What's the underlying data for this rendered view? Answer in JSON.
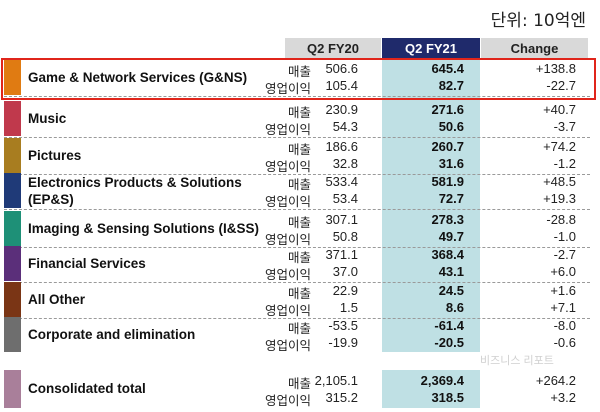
{
  "unit_label": "단위: 10억엔",
  "headers": {
    "prev": "Q2 FY20",
    "curr": "Q2 FY21",
    "change": "Change"
  },
  "row_labels": {
    "sales": "매출",
    "op_income": "영업이익"
  },
  "segments": [
    {
      "name": "Game & Network Services (G&NS)",
      "color": "#e07b12",
      "sales": {
        "prev": "506.6",
        "curr": "645.4",
        "change": "+138.8"
      },
      "op": {
        "prev": "105.4",
        "curr": "82.7",
        "change": "-22.7"
      }
    },
    {
      "name": "Music",
      "color": "#c0394c",
      "sales": {
        "prev": "230.9",
        "curr": "271.6",
        "change": "+40.7"
      },
      "op": {
        "prev": "54.3",
        "curr": "50.6",
        "change": "-3.7"
      }
    },
    {
      "name": "Pictures",
      "color": "#a87d20",
      "sales": {
        "prev": "186.6",
        "curr": "260.7",
        "change": "+74.2"
      },
      "op": {
        "prev": "32.8",
        "curr": "31.6",
        "change": "-1.2"
      }
    },
    {
      "name": "Electronics Products & Solutions (EP&S)",
      "name_line1": "Electronics Products & Solutions",
      "name_line2": "(EP&S)",
      "color": "#1f3a78",
      "sales": {
        "prev": "533.4",
        "curr": "581.9",
        "change": "+48.5"
      },
      "op": {
        "prev": "53.4",
        "curr": "72.7",
        "change": "+19.3"
      }
    },
    {
      "name": "Imaging & Sensing Solutions (I&SS)",
      "color": "#1e9077",
      "sales": {
        "prev": "307.1",
        "curr": "278.3",
        "change": "-28.8"
      },
      "op": {
        "prev": "50.8",
        "curr": "49.7",
        "change": "-1.0"
      }
    },
    {
      "name": "Financial Services",
      "color": "#5b2f7a",
      "sales": {
        "prev": "371.1",
        "curr": "368.4",
        "change": "-2.7"
      },
      "op": {
        "prev": "37.0",
        "curr": "43.1",
        "change": "+6.0"
      }
    },
    {
      "name": "All Other",
      "color": "#7a3515",
      "sales": {
        "prev": "22.9",
        "curr": "24.5",
        "change": "+1.6"
      },
      "op": {
        "prev": "1.5",
        "curr": "8.6",
        "change": "+7.1"
      }
    },
    {
      "name": "Corporate and elimination",
      "color": "#6e6e6e",
      "sales": {
        "prev": "-53.5",
        "curr": "-61.4",
        "change": "-8.0"
      },
      "op": {
        "prev": "-19.9",
        "curr": "-20.5",
        "change": "-0.6"
      }
    }
  ],
  "total": {
    "name": "Consolidated total",
    "color": "#a97f9a",
    "sales": {
      "prev": "2,105.1",
      "curr": "2,369.4",
      "change": "+264.2"
    },
    "op": {
      "prev": "315.2",
      "curr": "318.5",
      "change": "+3.2"
    }
  },
  "watermark": "비즈니스 리포트"
}
